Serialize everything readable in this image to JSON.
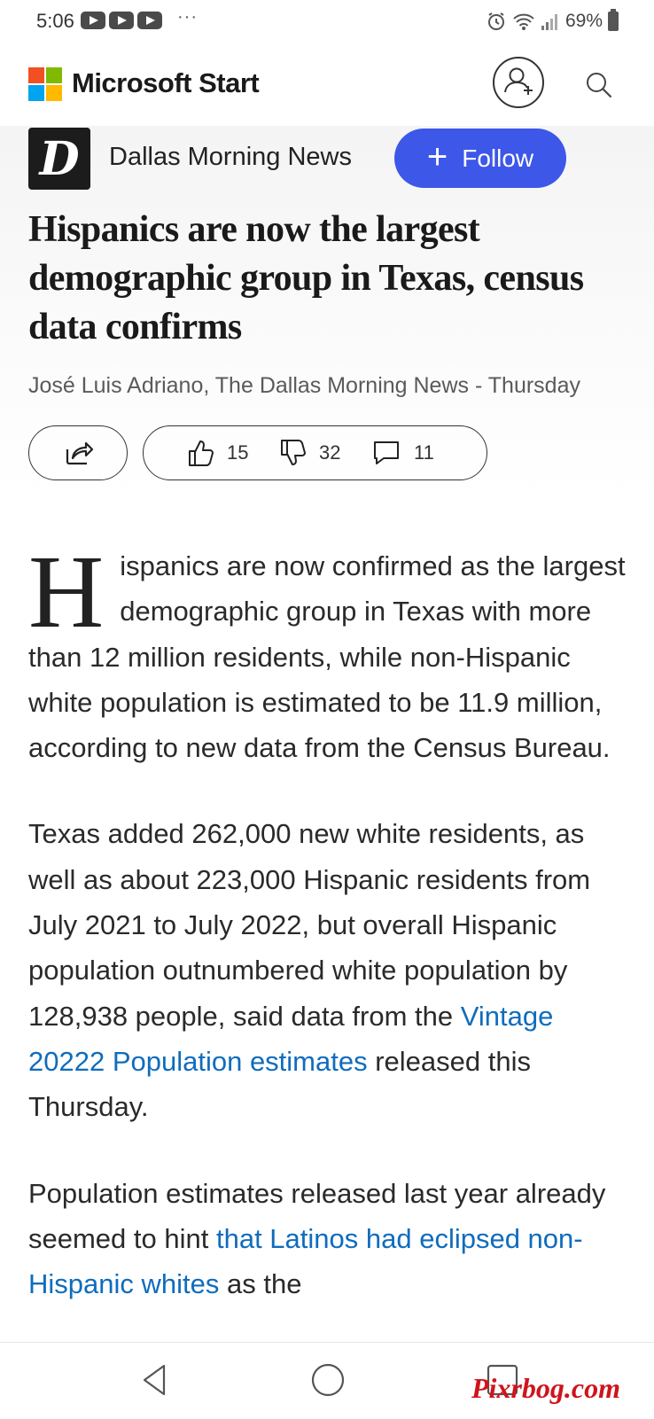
{
  "status_bar": {
    "time": "5:06",
    "notification_icons": [
      "youtube-icon",
      "youtube-icon",
      "youtube-icon"
    ],
    "overflow": "···",
    "battery": "69%"
  },
  "app_bar": {
    "brand_name": "Microsoft Start",
    "profile_icon": "add-user-icon",
    "search_icon": "search-icon"
  },
  "publisher": {
    "logo_letter": "D",
    "name": "Dallas Morning News",
    "follow_label": "Follow"
  },
  "article": {
    "headline": "Hispanics are now the largest demographic group in Texas, census data confirms",
    "byline": "José Luis Adriano, The Dallas Morning News - Thursday",
    "reactions": {
      "likes": "15",
      "dislikes": "32",
      "comments": "11"
    },
    "paragraph1": {
      "dropcap": "H",
      "text": "ispanics are now confirmed as the largest demographic group in Texas with more than 12 million residents, while non-Hispanic white population is estimated to be 11.9 million, according to new data from the Census Bureau."
    },
    "paragraph2": {
      "text_before": "Texas added 262,000 new white residents, as well as about 223,000 Hispanic residents from July 2021 to July 2022, but overall Hispanic population outnumbered white population by 128,938 people, said data from the ",
      "link": "Vintage 20222 Population estimates",
      "text_after": " released this Thursday."
    },
    "paragraph3": {
      "text_before": "Population estimates released last year already seemed to hint ",
      "link": "that Latinos had eclipsed non-Hispanic whites",
      "text_after": " as the"
    }
  },
  "nav_bar": {
    "back_icon": "back-triangle-icon",
    "home_icon": "home-circle-icon",
    "recents_icon": "recents-square-icon"
  },
  "watermark": "Pixrbog.com",
  "colors": {
    "accent": "#3d57e8",
    "link": "#0f6cbd"
  }
}
